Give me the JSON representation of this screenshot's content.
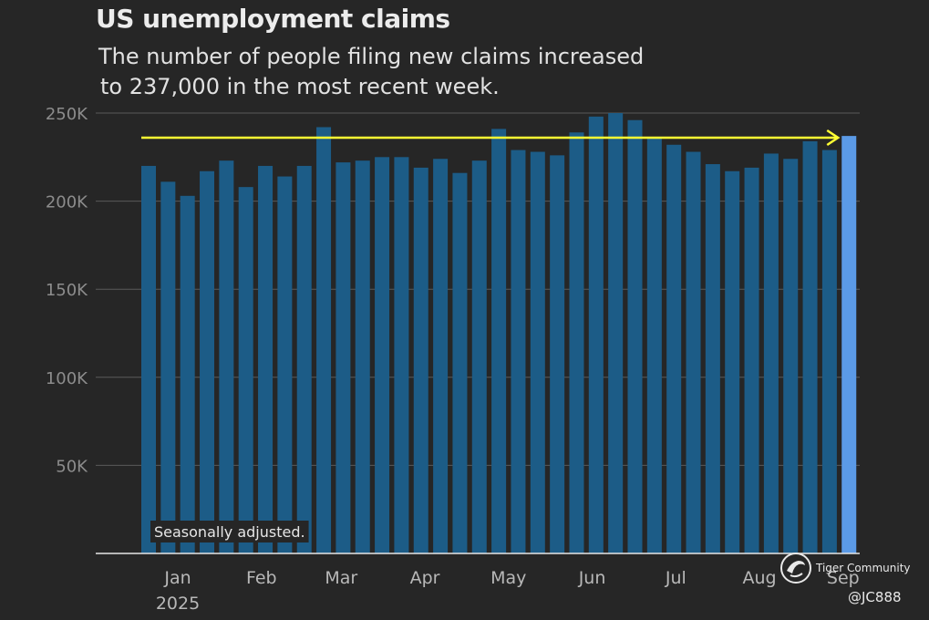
{
  "chart_data": {
    "type": "bar",
    "title": "US unemployment claims",
    "subtitle_lines": [
      "The number of people filing new claims increased",
      "to 237,000 in the most recent week."
    ],
    "xlabel": "",
    "ylabel": "",
    "ylim": [
      0,
      250000
    ],
    "yticks": [
      50000,
      100000,
      150000,
      200000,
      250000
    ],
    "ytick_labels": [
      "50K",
      "100K",
      "150K",
      "200K",
      "250K"
    ],
    "month_labels": [
      {
        "label": "Jan",
        "week": 1.5
      },
      {
        "label": "Feb",
        "week": 5.8
      },
      {
        "label": "Mar",
        "week": 9.9
      },
      {
        "label": "Apr",
        "week": 14.2
      },
      {
        "label": "May",
        "week": 18.5
      },
      {
        "label": "Jun",
        "week": 22.8
      },
      {
        "label": "Jul",
        "week": 27.1
      },
      {
        "label": "Aug",
        "week": 31.4
      },
      {
        "label": "Sep",
        "week": 35.7
      }
    ],
    "year_label": "2025",
    "values": [
      220000,
      211000,
      203000,
      217000,
      223000,
      208000,
      220000,
      214000,
      220000,
      242000,
      222000,
      223000,
      225000,
      225000,
      219000,
      224000,
      216000,
      223000,
      241000,
      229000,
      228000,
      226000,
      239000,
      248000,
      250000,
      246000,
      236000,
      232000,
      228000,
      221000,
      217000,
      219000,
      227000,
      224000,
      234000,
      229000,
      237000
    ],
    "highlight_index": 36,
    "bar_color": "#1c5c87",
    "highlight_color": "#5b9ae6",
    "reference_line": {
      "value": 237000,
      "color": "#ffff33",
      "style": "arrow"
    },
    "note": "Seasonally adjusted."
  },
  "watermark": {
    "name": "Tiger Community",
    "handle": "@JC888"
  }
}
